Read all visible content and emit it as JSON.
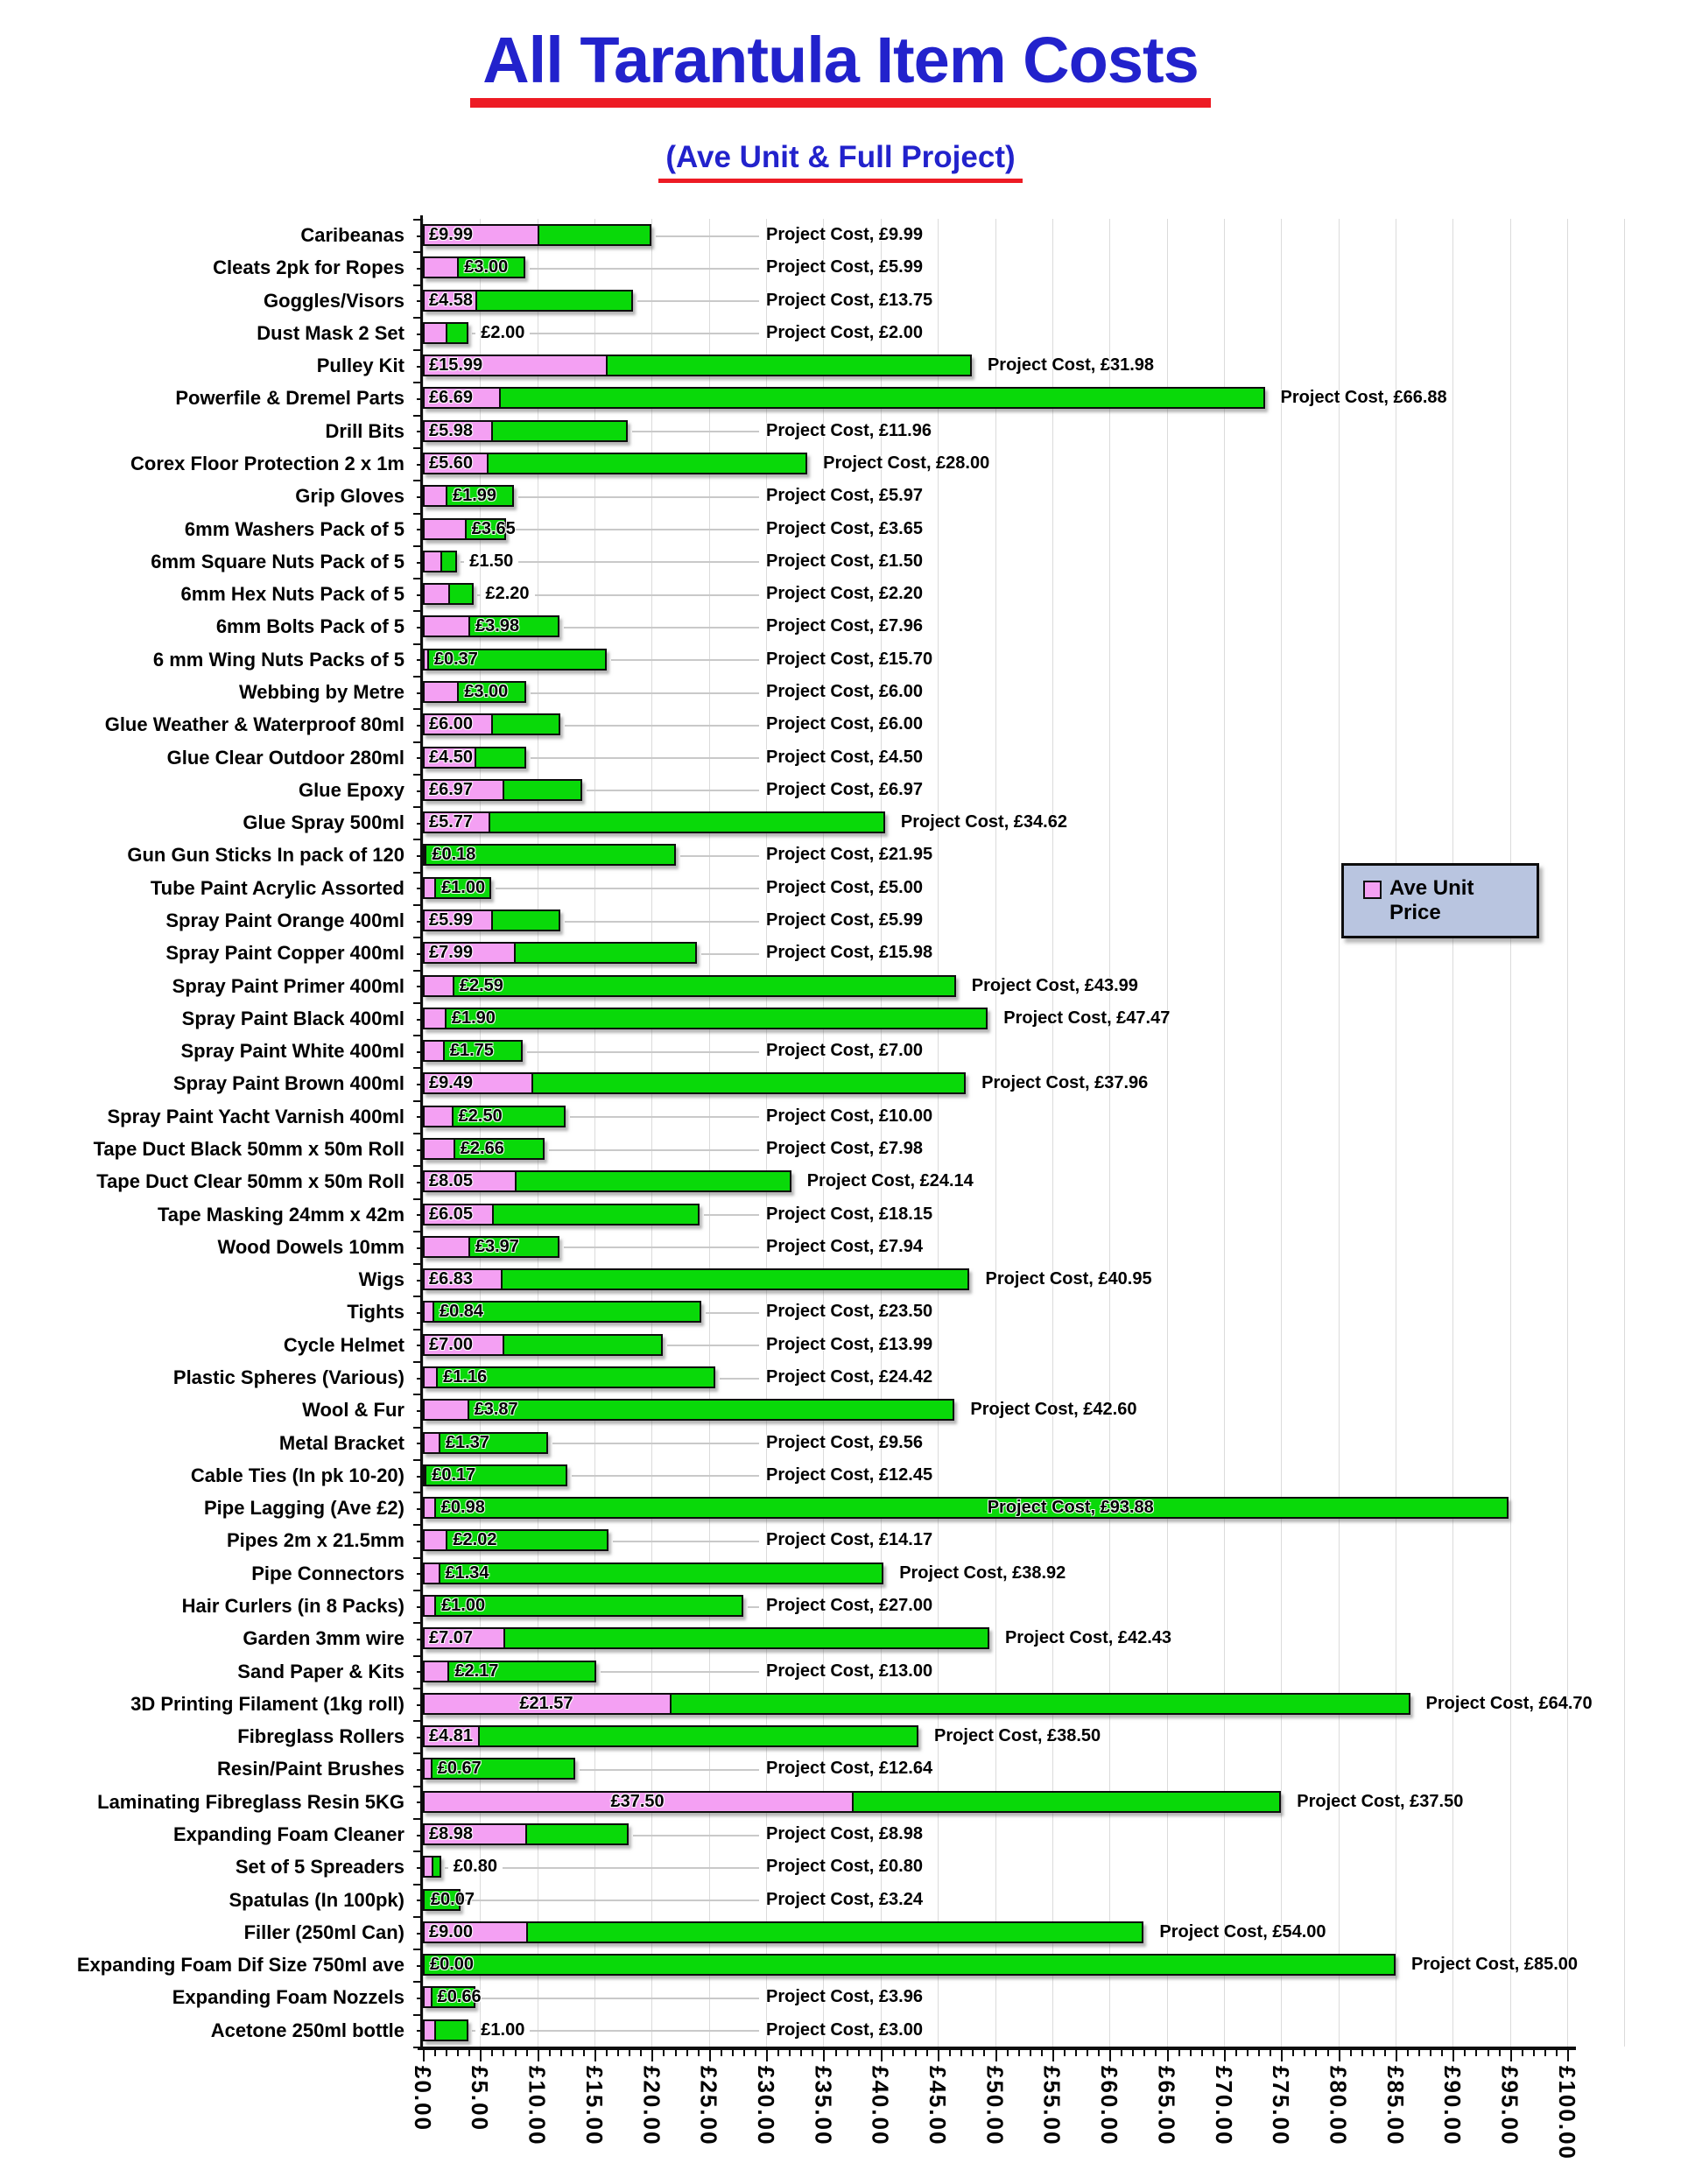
{
  "colors": {
    "ave_unit_pink": "#F4A0F3",
    "project_green": "#09D909",
    "title_blue": "#2222CC",
    "underline_red": "#ED1B24",
    "legend_background": "#B9C5E0",
    "gridline": "#DBDBDB",
    "leader_line": "#C9C9C9",
    "axis_black": "#0D0D0D"
  },
  "chart_data": {
    "type": "bar",
    "orientation": "horizontal",
    "stacked": true,
    "title": "All Tarantula Item Costs",
    "subtitle": "(Ave Unit & Full Project)",
    "xlabel": "",
    "ylabel": "",
    "xlim": [
      0,
      100
    ],
    "x_major_step": 5,
    "x_minor_step": 1,
    "grid": true,
    "legend": {
      "entries": [
        "Ave Unit Price"
      ],
      "position": "right-middle"
    },
    "series": [
      {
        "name": "Ave Unit Price",
        "color": "#F4A0F3"
      },
      {
        "name": "Project Cost",
        "color": "#09D909"
      }
    ],
    "data_label_formats": {
      "ave_unit": "£{value}",
      "project": "Project Cost, £{value}"
    },
    "x_tick_labels": [
      "£0.00",
      "£5.00",
      "£10.00",
      "£15.00",
      "£20.00",
      "£25.00",
      "£30.00",
      "£35.00",
      "£40.00",
      "£45.00",
      "£50.00",
      "£55.00",
      "£60.00",
      "£65.00",
      "£70.00",
      "£75.00",
      "£80.00",
      "£85.00",
      "£90.00",
      "£95.00",
      "£100.00"
    ],
    "items": [
      {
        "category": "Caribeanas",
        "ave_unit_price": 9.99,
        "project_cost": 9.99
      },
      {
        "category": "Cleats 2pk for Ropes",
        "ave_unit_price": 3.0,
        "project_cost": 5.99
      },
      {
        "category": "Goggles/Visors",
        "ave_unit_price": 4.58,
        "project_cost": 13.75
      },
      {
        "category": "Dust Mask 2 Set",
        "ave_unit_price": 2.0,
        "project_cost": 2.0
      },
      {
        "category": "Pulley Kit",
        "ave_unit_price": 15.99,
        "project_cost": 31.98
      },
      {
        "category": "Powerfile & Dremel Parts",
        "ave_unit_price": 6.69,
        "project_cost": 66.88
      },
      {
        "category": "Drill Bits",
        "ave_unit_price": 5.98,
        "project_cost": 11.96
      },
      {
        "category": "Corex Floor Protection 2 x 1m",
        "ave_unit_price": 5.6,
        "project_cost": 28.0
      },
      {
        "category": "Grip Gloves",
        "ave_unit_price": 1.99,
        "project_cost": 5.97
      },
      {
        "category": "6mm Washers Pack of 5",
        "ave_unit_price": 3.65,
        "project_cost": 3.65
      },
      {
        "category": "6mm Square Nuts Pack of 5",
        "ave_unit_price": 1.5,
        "project_cost": 1.5
      },
      {
        "category": "6mm Hex Nuts Pack of 5",
        "ave_unit_price": 2.2,
        "project_cost": 2.2
      },
      {
        "category": "6mm Bolts Pack of 5",
        "ave_unit_price": 3.98,
        "project_cost": 7.96
      },
      {
        "category": "6 mm Wing Nuts Packs of 5",
        "ave_unit_price": 0.37,
        "project_cost": 15.7
      },
      {
        "category": "Webbing by Metre",
        "ave_unit_price": 3.0,
        "project_cost": 6.0
      },
      {
        "category": "Glue Weather & Waterproof 80ml",
        "ave_unit_price": 6.0,
        "project_cost": 6.0
      },
      {
        "category": "Glue Clear Outdoor 280ml",
        "ave_unit_price": 4.5,
        "project_cost": 4.5
      },
      {
        "category": "Glue Epoxy",
        "ave_unit_price": 6.97,
        "project_cost": 6.97
      },
      {
        "category": "Glue Spray 500ml",
        "ave_unit_price": 5.77,
        "project_cost": 34.62
      },
      {
        "category": "Gun Gun Sticks In pack of 120",
        "ave_unit_price": 0.18,
        "project_cost": 21.95
      },
      {
        "category": "Tube Paint Acrylic Assorted",
        "ave_unit_price": 1.0,
        "project_cost": 5.0
      },
      {
        "category": "Spray Paint Orange 400ml",
        "ave_unit_price": 5.99,
        "project_cost": 5.99
      },
      {
        "category": "Spray Paint Copper 400ml",
        "ave_unit_price": 7.99,
        "project_cost": 15.98
      },
      {
        "category": "Spray Paint Primer 400ml",
        "ave_unit_price": 2.59,
        "project_cost": 43.99
      },
      {
        "category": "Spray Paint Black 400ml",
        "ave_unit_price": 1.9,
        "project_cost": 47.47
      },
      {
        "category": "Spray Paint White 400ml",
        "ave_unit_price": 1.75,
        "project_cost": 7.0
      },
      {
        "category": "Spray Paint Brown 400ml",
        "ave_unit_price": 9.49,
        "project_cost": 37.96
      },
      {
        "category": "Spray Paint Yacht Varnish 400ml",
        "ave_unit_price": 2.5,
        "project_cost": 10.0
      },
      {
        "category": "Tape Duct Black 50mm x 50m Roll",
        "ave_unit_price": 2.66,
        "project_cost": 7.98
      },
      {
        "category": "Tape Duct  Clear 50mm x 50m Roll",
        "ave_unit_price": 8.05,
        "project_cost": 24.14
      },
      {
        "category": "Tape Masking 24mm x 42m",
        "ave_unit_price": 6.05,
        "project_cost": 18.15
      },
      {
        "category": "Wood Dowels 10mm",
        "ave_unit_price": 3.97,
        "project_cost": 7.94
      },
      {
        "category": "Wigs",
        "ave_unit_price": 6.83,
        "project_cost": 40.95
      },
      {
        "category": "Tights",
        "ave_unit_price": 0.84,
        "project_cost": 23.5
      },
      {
        "category": "Cycle Helmet",
        "ave_unit_price": 7.0,
        "project_cost": 13.99
      },
      {
        "category": "Plastic Spheres (Various)",
        "ave_unit_price": 1.16,
        "project_cost": 24.42
      },
      {
        "category": "Wool & Fur",
        "ave_unit_price": 3.87,
        "project_cost": 42.6
      },
      {
        "category": "Metal Bracket",
        "ave_unit_price": 1.37,
        "project_cost": 9.56
      },
      {
        "category": "Cable Ties (In pk 10-20)",
        "ave_unit_price": 0.17,
        "project_cost": 12.45
      },
      {
        "category": "Pipe Lagging (Ave £2)",
        "ave_unit_price": 0.98,
        "project_cost": 93.88
      },
      {
        "category": "Pipes 2m x 21.5mm",
        "ave_unit_price": 2.02,
        "project_cost": 14.17
      },
      {
        "category": "Pipe Connectors",
        "ave_unit_price": 1.34,
        "project_cost": 38.92
      },
      {
        "category": "Hair Curlers (in 8 Packs)",
        "ave_unit_price": 1.0,
        "project_cost": 27.0
      },
      {
        "category": "Garden 3mm wire",
        "ave_unit_price": 7.07,
        "project_cost": 42.43
      },
      {
        "category": "Sand Paper & Kits",
        "ave_unit_price": 2.17,
        "project_cost": 13.0
      },
      {
        "category": "3D Printing Filament (1kg roll)",
        "ave_unit_price": 21.57,
        "project_cost": 64.7
      },
      {
        "category": "Fibreglass Rollers",
        "ave_unit_price": 4.81,
        "project_cost": 38.5
      },
      {
        "category": "Resin/Paint Brushes",
        "ave_unit_price": 0.67,
        "project_cost": 12.64
      },
      {
        "category": "Laminating Fibreglass Resin 5KG",
        "ave_unit_price": 37.5,
        "project_cost": 37.5
      },
      {
        "category": "Expanding Foam Cleaner",
        "ave_unit_price": 8.98,
        "project_cost": 8.98
      },
      {
        "category": "Set of 5 Spreaders",
        "ave_unit_price": 0.8,
        "project_cost": 0.8
      },
      {
        "category": "Spatulas (In 100pk)",
        "ave_unit_price": 0.07,
        "project_cost": 3.24
      },
      {
        "category": "Filler (250ml Can)",
        "ave_unit_price": 9.0,
        "project_cost": 54.0
      },
      {
        "category": "Expanding Foam Dif Size 750ml ave",
        "ave_unit_price": 0.0,
        "project_cost": 85.0
      },
      {
        "category": "Expanding Foam Nozzels",
        "ave_unit_price": 0.66,
        "project_cost": 3.96
      },
      {
        "category": "Acetone 250ml bottle",
        "ave_unit_price": 1.0,
        "project_cost": 3.0
      }
    ]
  }
}
